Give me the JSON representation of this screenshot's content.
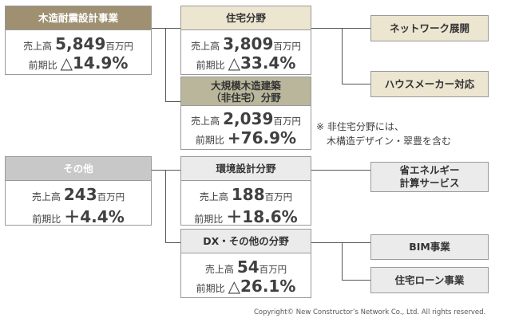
{
  "wood": {
    "title": "木造耐震設計事業",
    "sales_label": "売上高",
    "sales_value": "5,849",
    "sales_unit": "百万円",
    "yoy_label": "前期比",
    "yoy_value": "△14.9%"
  },
  "residential": {
    "title": "住宅分野",
    "sales_label": "売上高",
    "sales_value": "3,809",
    "sales_unit": "百万円",
    "yoy_label": "前期比",
    "yoy_value": "△33.4%"
  },
  "largewood": {
    "title_line1": "大規模木造建築",
    "title_line2": "（非住宅）分野",
    "sales_label": "売上高",
    "sales_value": "2,039",
    "sales_unit": "百万円",
    "yoy_label": "前期比",
    "yoy_value": "+76.9%"
  },
  "other": {
    "title": "その他",
    "sales_label": "売上高",
    "sales_value": "243",
    "sales_unit": "百万円",
    "yoy_label": "前期比",
    "yoy_value": "＋4.4%"
  },
  "env": {
    "title": "環境設計分野",
    "sales_label": "売上高",
    "sales_value": "188",
    "sales_unit": "百万円",
    "yoy_label": "前期比",
    "yoy_value": "＋18.6%"
  },
  "dx": {
    "title": "DX・その他の分野",
    "sales_label": "売上高",
    "sales_value": "54",
    "sales_unit": "百万円",
    "yoy_label": "前期比",
    "yoy_value": "△26.1%"
  },
  "leaves": {
    "network": "ネットワーク展開",
    "housemaker": "ハウスメーカー対応",
    "energy_line1": "省エネルギー",
    "energy_line2": "計算サービス",
    "bim": "BIM事業",
    "loan": "住宅ローン事業"
  },
  "note": {
    "line1": "※ 非住宅分野には、",
    "line2": "木構造デザイン・翠豊を含む"
  },
  "copyright": "Copyright© New Constructor’s Network Co., Ltd. All rights reserved."
}
